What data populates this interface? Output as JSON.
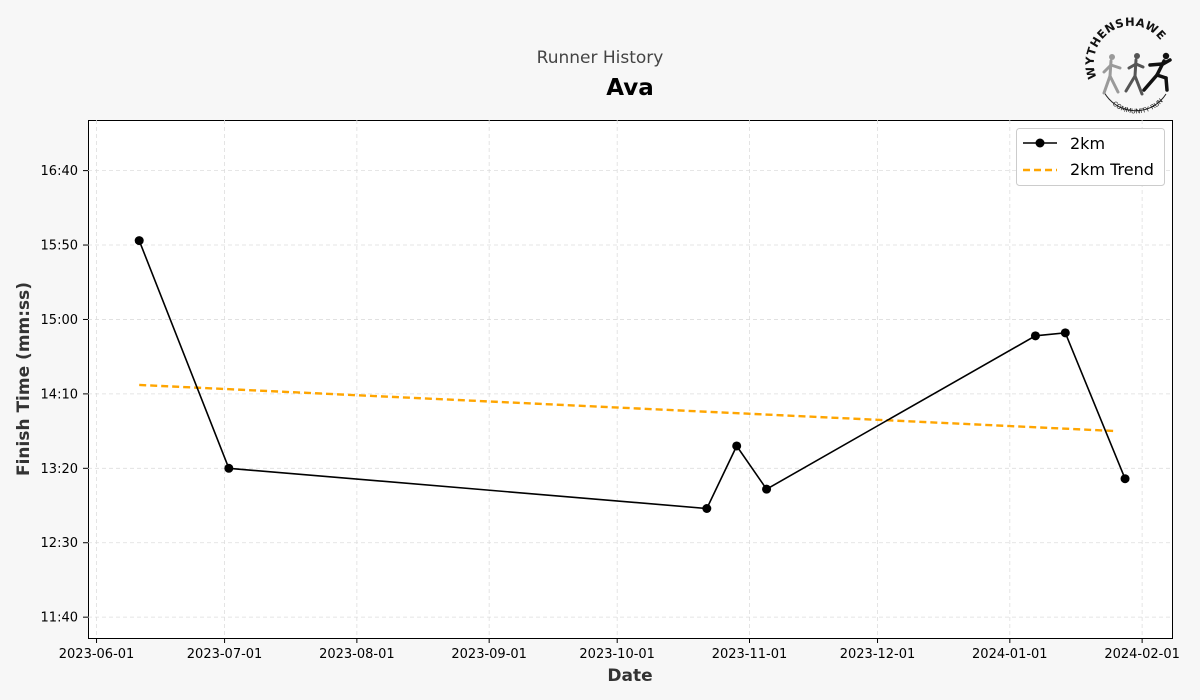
{
  "header": {
    "subtitle": "Runner History",
    "title": "Ava"
  },
  "logo": {
    "top_text": "WYTHENSHAWE",
    "bottom_text": "COMMUNITY RUN"
  },
  "chart_data": {
    "type": "line",
    "title": "Ava",
    "subtitle": "Runner History",
    "xlabel": "Date",
    "ylabel": "Finish Time (mm:ss)",
    "x_ticks": [
      "2023-06-01",
      "2023-07-01",
      "2023-08-01",
      "2023-09-01",
      "2023-10-01",
      "2023-11-01",
      "2023-12-01",
      "2024-01-01",
      "2024-02-01"
    ],
    "y_ticks": [
      "11:40",
      "12:30",
      "13:20",
      "14:10",
      "15:00",
      "15:50",
      "16:40"
    ],
    "y_tick_seconds": [
      700,
      750,
      800,
      850,
      900,
      950,
      1000
    ],
    "xlim": [
      "2023-05-30",
      "2024-02-08"
    ],
    "ylim_seconds": [
      686,
      1034
    ],
    "grid": true,
    "legend_position": "top-right",
    "series": [
      {
        "name": "2km",
        "style": "solid-marker",
        "color": "#000000",
        "points": [
          {
            "x": "2023-06-11",
            "y": 953
          },
          {
            "x": "2023-07-02",
            "y": 800
          },
          {
            "x": "2023-10-22",
            "y": 773
          },
          {
            "x": "2023-10-29",
            "y": 815
          },
          {
            "x": "2023-11-05",
            "y": 786
          },
          {
            "x": "2024-01-07",
            "y": 889
          },
          {
            "x": "2024-01-14",
            "y": 891
          },
          {
            "x": "2024-01-28",
            "y": 793
          }
        ]
      },
      {
        "name": "2km Trend",
        "style": "dashed",
        "color": "#FFA500",
        "points": [
          {
            "x": "2023-06-11",
            "y": 856
          },
          {
            "x": "2024-01-26",
            "y": 825
          }
        ]
      }
    ]
  }
}
